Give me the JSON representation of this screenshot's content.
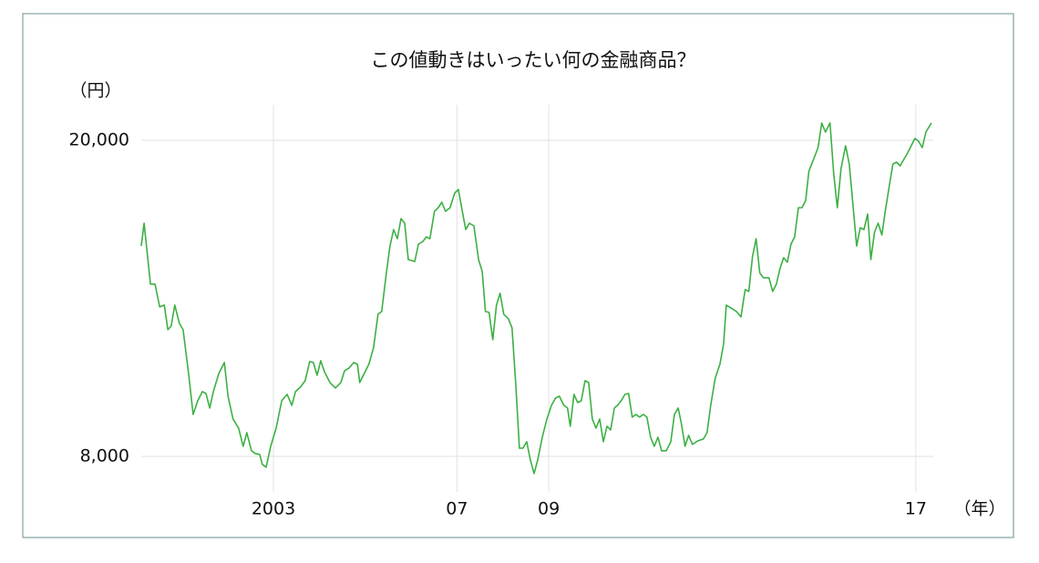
{
  "chart_data": {
    "type": "line",
    "title": "この値動きはいったい何の金融商品？",
    "y_label": "（円）",
    "x_label": "（年）",
    "xlim": [
      2000,
      2017.5
    ],
    "xticks": [
      2003,
      {
        "value": 2007,
        "label": "07"
      },
      {
        "value": 2009,
        "label": "09"
      },
      {
        "value": 2017,
        "label": "17"
      }
    ],
    "ylim": [
      6650,
      21350
    ],
    "yticks": [
      {
        "value": 8000,
        "label": "8,000"
      },
      {
        "value": 20000,
        "label": "20,000"
      }
    ],
    "grid": true,
    "x": [
      2000.12,
      2000.18,
      2000.32,
      2000.42,
      2000.52,
      2000.62,
      2000.7,
      2000.77,
      2000.85,
      2000.95,
      2001.03,
      2001.15,
      2001.25,
      2001.35,
      2001.45,
      2001.53,
      2001.61,
      2001.69,
      2001.81,
      2001.93,
      2002.01,
      2002.12,
      2002.24,
      2002.34,
      2002.42,
      2002.52,
      2002.6,
      2002.7,
      2002.76,
      2002.84,
      2002.94,
      2003.06,
      2003.18,
      2003.3,
      2003.4,
      2003.48,
      2003.59,
      2003.69,
      2003.79,
      2003.87,
      2003.95,
      2004.03,
      2004.11,
      2004.23,
      2004.35,
      2004.47,
      2004.55,
      2004.65,
      2004.75,
      2004.83,
      2004.88,
      2004.98,
      2005.08,
      2005.18,
      2005.28,
      2005.36,
      2005.46,
      2005.54,
      2005.62,
      2005.7,
      2005.78,
      2005.86,
      2005.94,
      2006.08,
      2006.16,
      2006.26,
      2006.33,
      2006.41,
      2006.51,
      2006.59,
      2006.67,
      2006.75,
      2006.85,
      2006.95,
      2007.03,
      2007.11,
      2007.19,
      2007.27,
      2007.37,
      2007.47,
      2007.55,
      2007.62,
      2007.7,
      2007.78,
      2007.86,
      2007.94,
      2008.02,
      2008.12,
      2008.2,
      2008.28,
      2008.36,
      2008.44,
      2008.52,
      2008.6,
      2008.68,
      2008.76,
      2008.86,
      2008.96,
      2009.06,
      2009.15,
      2009.23,
      2009.33,
      2009.41,
      2009.47,
      2009.55,
      2009.63,
      2009.71,
      2009.79,
      2009.87,
      2009.95,
      2010.03,
      2010.11,
      2010.19,
      2010.27,
      2010.35,
      2010.43,
      2010.5,
      2010.58,
      2010.66,
      2010.74,
      2010.82,
      2010.9,
      2010.98,
      2011.06,
      2011.14,
      2011.22,
      2011.3,
      2011.38,
      2011.46,
      2011.56,
      2011.66,
      2011.74,
      2011.82,
      2011.89,
      2011.97,
      2012.05,
      2012.13,
      2012.25,
      2012.37,
      2012.45,
      2012.53,
      2012.63,
      2012.73,
      2012.81,
      2012.87,
      2012.97,
      2013.09,
      2013.19,
      2013.28,
      2013.36,
      2013.44,
      2013.52,
      2013.6,
      2013.68,
      2013.8,
      2013.88,
      2013.96,
      2014.04,
      2014.12,
      2014.2,
      2014.28,
      2014.36,
      2014.44,
      2014.52,
      2014.6,
      2014.67,
      2014.77,
      2014.87,
      2014.95,
      2015.03,
      2015.13,
      2015.21,
      2015.29,
      2015.37,
      2015.47,
      2015.55,
      2015.63,
      2015.71,
      2015.79,
      2015.87,
      2015.95,
      2016.02,
      2016.1,
      2016.18,
      2016.26,
      2016.34,
      2016.42,
      2016.5,
      2016.58,
      2016.66,
      2016.74,
      2016.82,
      2016.9,
      2016.98,
      2017.06,
      2017.14,
      2017.22,
      2017.34
    ],
    "series": [
      {
        "color": "#3cb043",
        "values": [
          15990,
          16854,
          14538,
          14538,
          13674,
          13743,
          12809,
          12948,
          13743,
          13051,
          12809,
          11150,
          9594,
          10113,
          10459,
          10390,
          9836,
          10459,
          11150,
          11565,
          10286,
          9422,
          9076,
          8384,
          8903,
          8212,
          8108,
          8074,
          7693,
          7589,
          8384,
          9076,
          10113,
          10355,
          9940,
          10459,
          10632,
          10874,
          11599,
          11565,
          11081,
          11634,
          11219,
          10804,
          10597,
          10804,
          11254,
          11357,
          11565,
          11496,
          10804,
          11150,
          11496,
          12118,
          13397,
          13501,
          14953,
          15990,
          16612,
          16266,
          17027,
          16854,
          15471,
          15402,
          16059,
          16163,
          16336,
          16266,
          17304,
          17442,
          17649,
          17304,
          17442,
          17995,
          18133,
          17373,
          16612,
          16854,
          16750,
          15471,
          15022,
          13501,
          13466,
          12429,
          13743,
          14192,
          13397,
          13224,
          12879,
          10804,
          8315,
          8315,
          8557,
          7866,
          7347,
          7866,
          8730,
          9422,
          9940,
          10217,
          10286,
          9940,
          9836,
          9145,
          10355,
          10044,
          10113,
          10874,
          10804,
          9422,
          9076,
          9422,
          8557,
          9145,
          9007,
          9836,
          9940,
          10113,
          10355,
          10390,
          9491,
          9594,
          9491,
          9594,
          9491,
          8730,
          8384,
          8730,
          8212,
          8212,
          8557,
          9594,
          9836,
          9249,
          8384,
          8799,
          8454,
          8592,
          8661,
          8903,
          9940,
          10977,
          11496,
          12256,
          13743,
          13639,
          13501,
          13293,
          14331,
          14262,
          15575,
          16266,
          14953,
          14780,
          14780,
          14262,
          14538,
          15126,
          15541,
          15368,
          16059,
          16336,
          17442,
          17442,
          17718,
          18825,
          19274,
          19723,
          20657,
          20311,
          20657,
          18755,
          17442,
          18928,
          19793,
          19101,
          17546,
          15990,
          16681,
          16612,
          17200,
          15471,
          16508,
          16854,
          16405,
          17373,
          18237,
          19101,
          19170,
          19032,
          19274,
          19516,
          19793,
          20069,
          19965,
          19723,
          20311,
          20657
        ]
      }
    ]
  }
}
